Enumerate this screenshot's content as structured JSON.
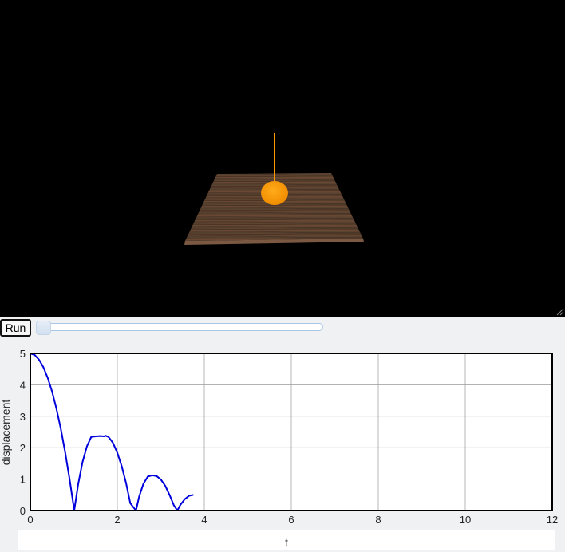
{
  "scene": {
    "background": "#000000",
    "ball_color": "#ff9900",
    "string_color": "#ff9900",
    "table_color": "#5a3e2b"
  },
  "controls": {
    "run_label": "Run",
    "slider_value": 0.0
  },
  "chart_data": {
    "type": "line",
    "xlabel": "t",
    "ylabel": "displacement",
    "xlim": [
      0,
      12
    ],
    "ylim": [
      0,
      5
    ],
    "xticks": [
      "0",
      "2",
      "4",
      "6",
      "8",
      "10",
      "12"
    ],
    "yticks": [
      "0",
      "1",
      "2",
      "3",
      "4",
      "5"
    ],
    "grid": true,
    "line_color": "#0000dd",
    "series": [
      {
        "x": [
          0,
          0.1,
          0.2,
          0.3,
          0.4,
          0.5,
          0.6,
          0.7,
          0.8,
          0.9,
          1.0,
          1.01,
          1.1,
          1.2,
          1.3,
          1.4,
          1.5,
          1.6,
          1.7,
          1.73,
          1.8,
          1.9,
          2.0,
          2.1,
          2.2,
          2.3,
          2.43,
          2.5,
          2.6,
          2.7,
          2.8,
          2.9,
          3.0,
          3.1,
          3.2,
          3.3,
          3.38,
          3.45,
          3.55,
          3.65,
          3.75
        ],
        "y": [
          5.0,
          4.95,
          4.8,
          4.56,
          4.22,
          3.78,
          3.24,
          2.6,
          1.86,
          1.03,
          0.1,
          0.0,
          0.84,
          1.54,
          2.04,
          2.34,
          2.36,
          2.37,
          2.36,
          2.38,
          2.34,
          2.15,
          1.84,
          1.41,
          0.88,
          0.23,
          0.0,
          0.44,
          0.85,
          1.08,
          1.12,
          1.1,
          0.99,
          0.79,
          0.5,
          0.17,
          0.0,
          0.18,
          0.36,
          0.47,
          0.5
        ]
      }
    ]
  }
}
